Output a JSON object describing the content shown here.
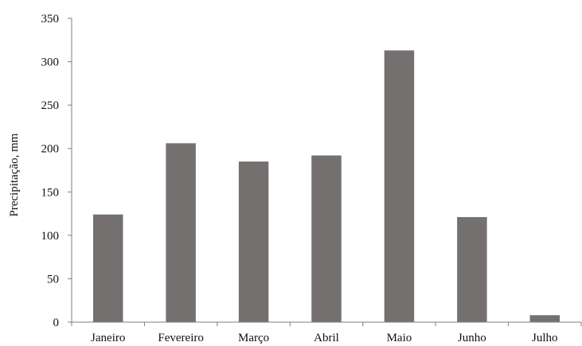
{
  "chart_data": {
    "type": "bar",
    "categories": [
      "Janeiro",
      "Fevereiro",
      "Março",
      "Abril",
      "Maio",
      "Junho",
      "Julho"
    ],
    "values": [
      124,
      206,
      185,
      192,
      313,
      121,
      8
    ],
    "title": "",
    "xlabel": "",
    "ylabel": "Precipitação, mm",
    "ylim": [
      0,
      350
    ],
    "yticks": [
      0,
      50,
      100,
      150,
      200,
      250,
      300,
      350
    ],
    "bar_color": "#757070",
    "grid": false,
    "legend": "none"
  }
}
